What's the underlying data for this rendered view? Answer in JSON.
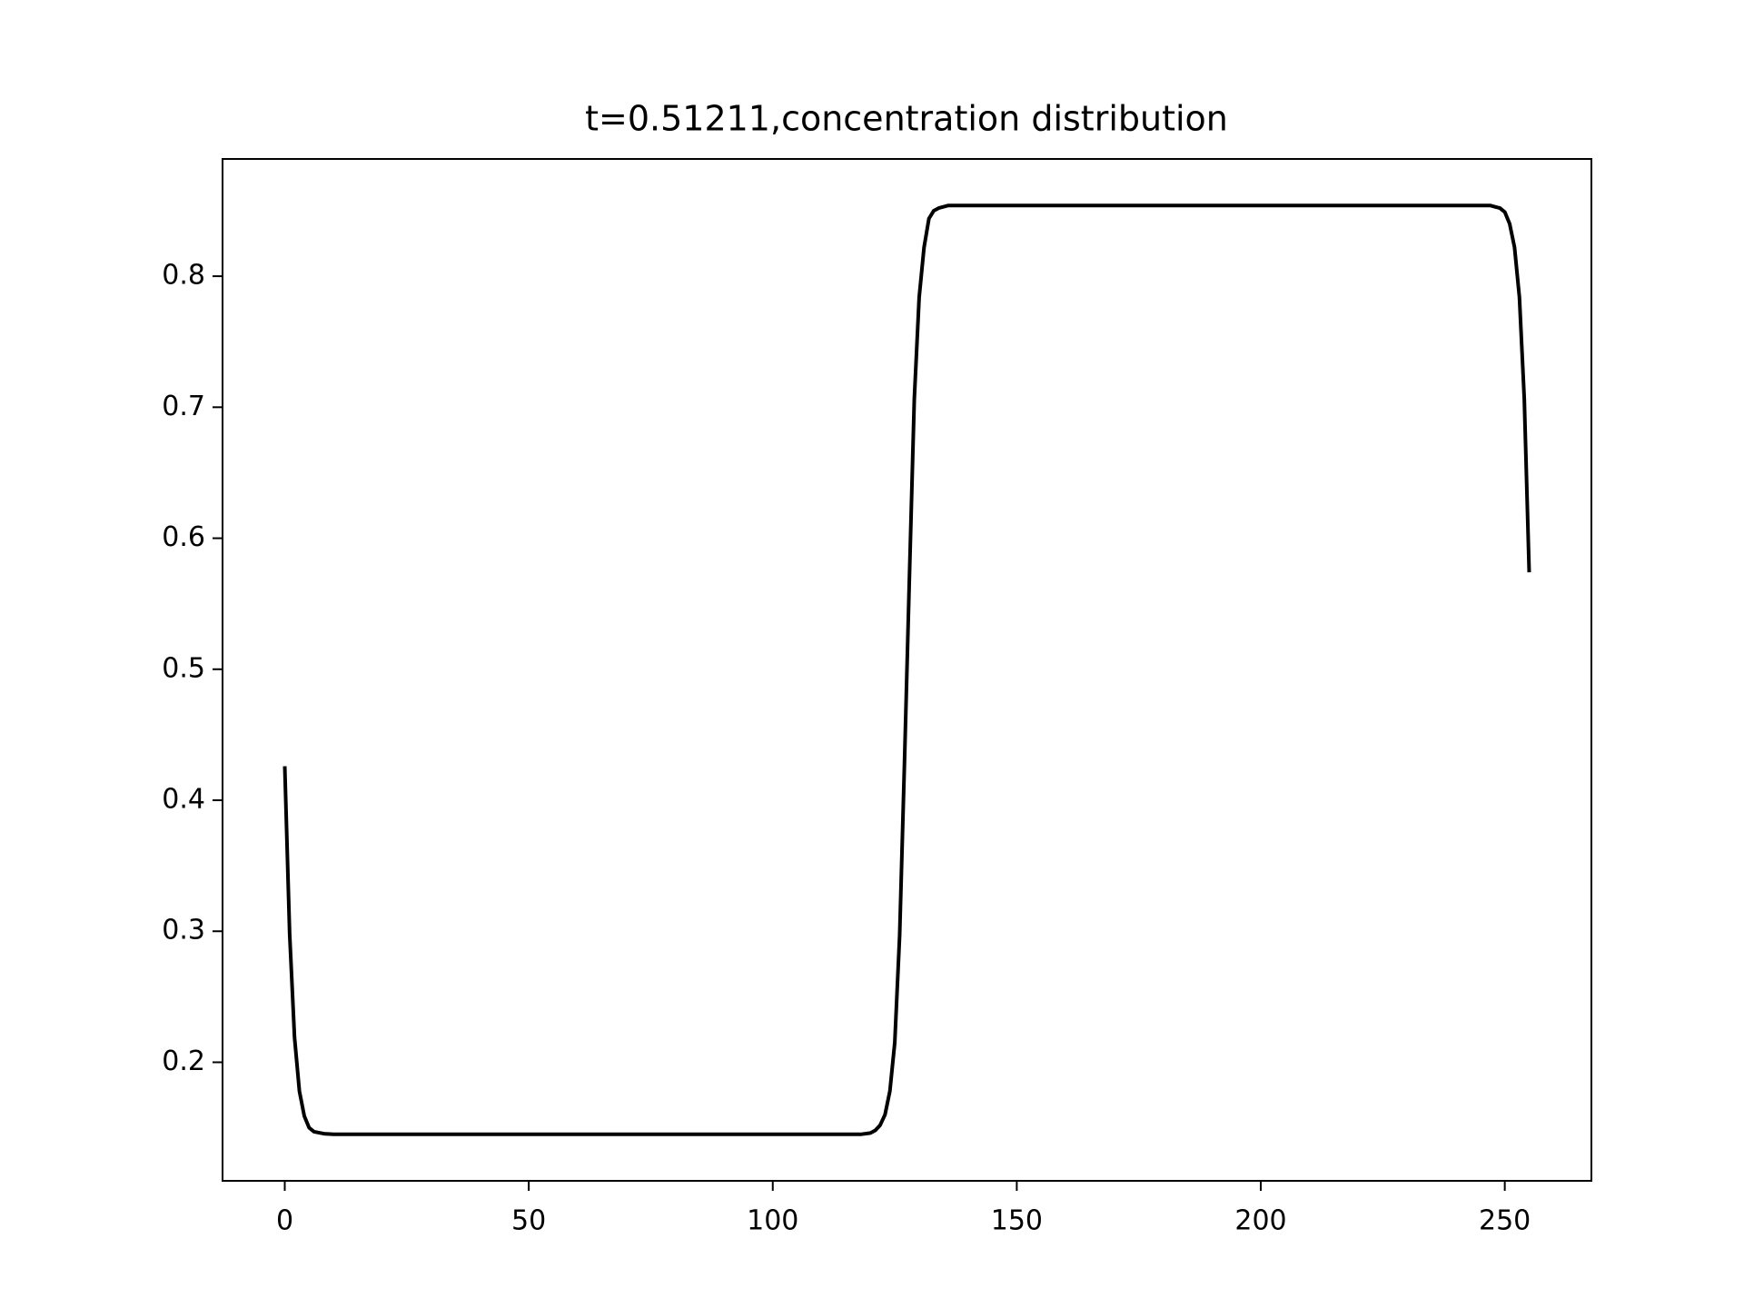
{
  "chart_data": {
    "type": "line",
    "title": "t=0.51211,concentration distribution",
    "x": [
      0,
      1,
      2,
      3,
      4,
      5,
      6,
      8,
      10,
      50,
      100,
      118,
      120,
      121,
      122,
      123,
      124,
      125,
      126,
      127,
      128,
      129,
      130,
      131,
      132,
      133,
      134,
      136,
      200,
      247,
      248,
      249,
      250,
      251,
      252,
      253,
      254,
      255
    ],
    "series": [
      {
        "name": "concentration",
        "color": "#000000",
        "values": [
          0.426,
          0.298,
          0.219,
          0.178,
          0.159,
          0.15,
          0.147,
          0.1455,
          0.145,
          0.145,
          0.145,
          0.145,
          0.146,
          0.148,
          0.152,
          0.16,
          0.178,
          0.215,
          0.297,
          0.43,
          0.57,
          0.706,
          0.784,
          0.822,
          0.844,
          0.85,
          0.852,
          0.854,
          0.854,
          0.854,
          0.853,
          0.852,
          0.849,
          0.84,
          0.822,
          0.784,
          0.706,
          0.574
        ]
      }
    ],
    "xlim": [
      -12.75,
      267.75
    ],
    "ylim": [
      0.1095,
      0.8895
    ],
    "xticks": [
      0,
      50,
      100,
      150,
      200,
      250
    ],
    "yticks": [
      0.2,
      0.3,
      0.4,
      0.5,
      0.6,
      0.7,
      0.8
    ],
    "grid": false
  }
}
